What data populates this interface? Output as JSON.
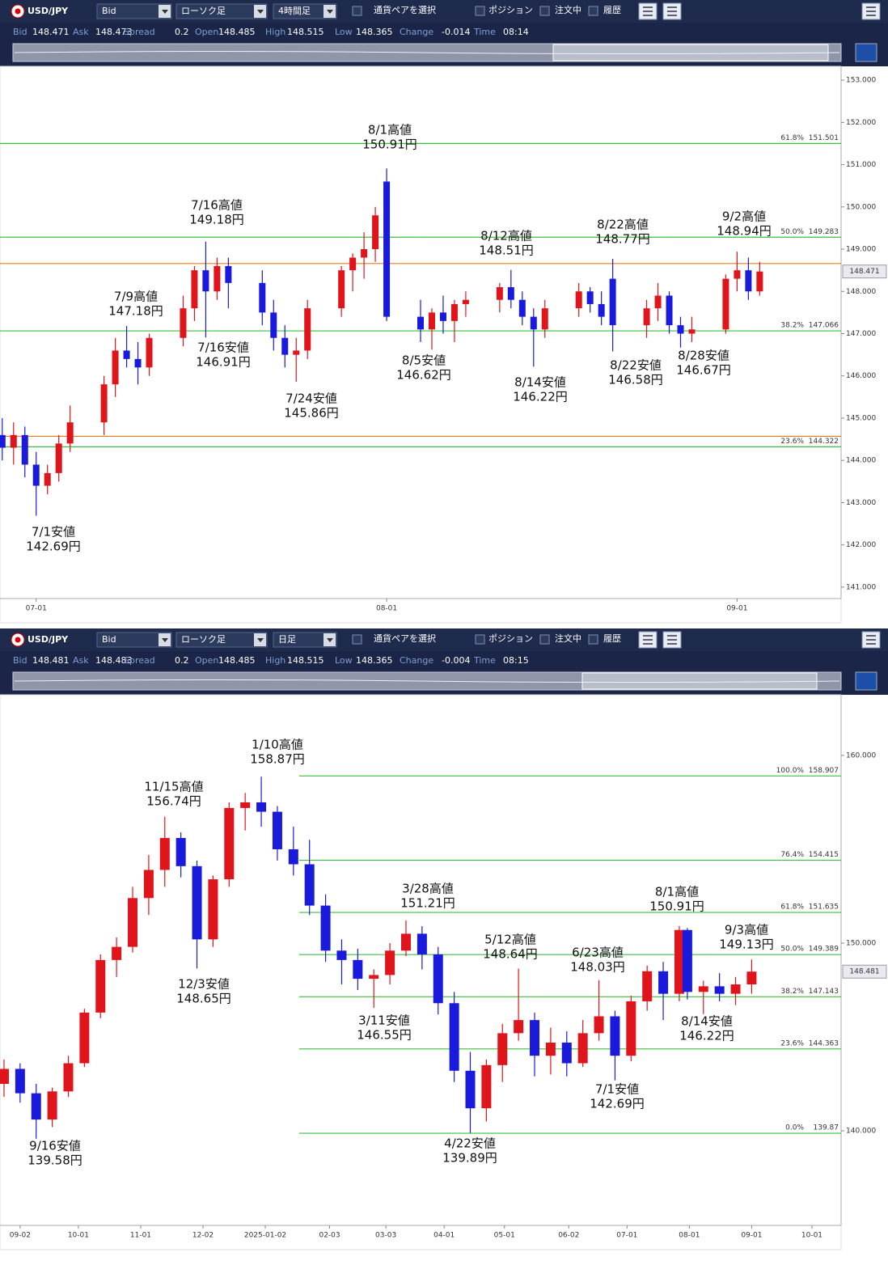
{
  "panels": [
    {
      "toolbar": {
        "pair": "USD/JPY",
        "side": "Bid",
        "chart_kind": "ローソク足",
        "period": "4時間足",
        "select": "通貨ペアを選択",
        "position": "ポジション",
        "orders": "注文中",
        "history": "履歴"
      },
      "info": [
        {
          "label": "Bid",
          "value": 148.471
        },
        {
          "label": "Ask",
          "value": 148.473
        },
        {
          "label": "Spread",
          "value": 0.2
        },
        {
          "label": "Open",
          "value": 148.485
        },
        {
          "label": "High",
          "value": 148.515
        },
        {
          "label": "Low",
          "value": 148.365
        },
        {
          "label": "Change",
          "value": -0.014
        },
        {
          "label": "Time",
          "value": "08:14"
        }
      ]
    },
    {
      "toolbar": {
        "pair": "USD/JPY",
        "side": "Bid",
        "chart_kind": "ローソク足",
        "period": "日足",
        "select": "通貨ペアを選択",
        "position": "ポジション",
        "orders": "注文中",
        "history": "履歴"
      },
      "info": [
        {
          "label": "Bid",
          "value": 148.481
        },
        {
          "label": "Ask",
          "value": 148.483
        },
        {
          "label": "Spread",
          "value": 0.2
        },
        {
          "label": "Open",
          "value": 148.485
        },
        {
          "label": "High",
          "value": 148.515
        },
        {
          "label": "Low",
          "value": 148.365
        },
        {
          "label": "Change",
          "value": -0.004
        },
        {
          "label": "Time",
          "value": "08:15"
        }
      ]
    }
  ],
  "chart_data": [
    {
      "type": "candlestick",
      "up_color": "#e0151c",
      "down_color": "#1a1adc",
      "x": [
        -3,
        -2,
        -1,
        0,
        1,
        2,
        3,
        6,
        7,
        8,
        9,
        10,
        13,
        14,
        15,
        16,
        17,
        20,
        21,
        22,
        23,
        24,
        27,
        28,
        29,
        30,
        31,
        34,
        35,
        36,
        37,
        38,
        41,
        42,
        43,
        44,
        45,
        48,
        49,
        50,
        51,
        54,
        55,
        56,
        57,
        58,
        61,
        62,
        63,
        64
      ],
      "open": [
        144.6,
        144.3,
        144.6,
        143.9,
        143.4,
        143.7,
        144.4,
        144.9,
        145.8,
        146.6,
        146.4,
        146.2,
        146.9,
        147.6,
        148.5,
        148.0,
        148.6,
        148.2,
        147.5,
        146.9,
        146.5,
        146.6,
        147.6,
        148.5,
        148.8,
        149.0,
        150.6,
        147.4,
        147.1,
        147.5,
        147.3,
        147.7,
        147.8,
        148.1,
        147.8,
        147.4,
        147.1,
        147.6,
        148.0,
        147.7,
        148.3,
        147.2,
        147.6,
        147.9,
        147.2,
        147.0,
        147.1,
        148.3,
        148.5,
        148.0
      ],
      "high": [
        145.0,
        144.9,
        144.8,
        144.2,
        143.9,
        144.6,
        145.3,
        146.0,
        146.9,
        147.18,
        146.8,
        147.0,
        147.9,
        148.6,
        149.18,
        148.8,
        148.8,
        148.5,
        147.8,
        147.2,
        146.9,
        147.8,
        148.6,
        148.9,
        149.4,
        150.0,
        150.91,
        147.8,
        147.6,
        147.9,
        147.8,
        148.0,
        148.2,
        148.51,
        148.0,
        147.6,
        147.8,
        148.2,
        148.1,
        148.0,
        148.77,
        147.8,
        148.2,
        148.0,
        147.4,
        147.4,
        148.4,
        148.94,
        148.8,
        148.7
      ],
      "low": [
        144.0,
        143.9,
        143.6,
        142.69,
        143.2,
        143.5,
        144.2,
        144.6,
        145.5,
        146.2,
        145.8,
        146.0,
        146.7,
        147.3,
        146.91,
        147.8,
        147.6,
        147.2,
        146.6,
        146.2,
        145.86,
        146.4,
        147.4,
        148.0,
        148.3,
        148.7,
        147.3,
        146.8,
        146.62,
        147.0,
        146.8,
        147.4,
        147.5,
        147.6,
        147.2,
        146.22,
        146.9,
        147.4,
        147.5,
        147.2,
        146.58,
        146.9,
        147.3,
        147.0,
        146.67,
        146.8,
        147.0,
        148.0,
        147.8,
        147.9
      ],
      "close": [
        144.3,
        144.6,
        143.9,
        143.4,
        143.7,
        144.4,
        144.9,
        145.8,
        146.6,
        146.4,
        146.2,
        146.9,
        147.6,
        148.5,
        148.0,
        148.6,
        148.2,
        147.5,
        146.9,
        146.5,
        146.6,
        147.6,
        148.5,
        148.8,
        149.0,
        149.8,
        147.4,
        147.1,
        147.5,
        147.3,
        147.7,
        147.8,
        148.1,
        147.8,
        147.4,
        147.1,
        147.6,
        148.0,
        147.7,
        147.4,
        147.2,
        147.6,
        147.9,
        147.2,
        147.0,
        147.1,
        148.3,
        148.5,
        148.0,
        148.471
      ],
      "xlim": [
        -3.2,
        71.2
      ],
      "xticks": [
        {
          "value": 0,
          "label": "07-01"
        },
        {
          "value": 31,
          "label": "08-01"
        },
        {
          "value": 62,
          "label": "09-01"
        }
      ],
      "ylim": [
        140.73,
        153.27
      ],
      "yticks": [
        {
          "value": 141,
          "label": "141.000"
        },
        {
          "value": 142,
          "label": "142.000"
        },
        {
          "value": 143,
          "label": "143.000"
        },
        {
          "value": 144,
          "label": "144.000"
        },
        {
          "value": 145,
          "label": "145.000"
        },
        {
          "value": 146,
          "label": "146.000"
        },
        {
          "value": 147,
          "label": "147.000"
        },
        {
          "value": 148,
          "label": "148.000"
        },
        {
          "value": 149,
          "label": "149.000"
        },
        {
          "value": 150,
          "label": "150.000"
        },
        {
          "value": 151,
          "label": "151.000"
        },
        {
          "value": 152,
          "label": "152.000"
        },
        {
          "value": 153,
          "label": "153.000"
        }
      ],
      "current_price": 148.471,
      "price_lines": [
        148.66,
        144.57
      ],
      "price_line_color": "#f07a1a",
      "fib_color": "#3cbf3c",
      "fib": [
        {
          "pct": {
            "value": 61.8,
            "label": "61.8%"
          },
          "level": 151.501
        },
        {
          "pct": {
            "value": 50.0,
            "label": "50.0%"
          },
          "level": 149.283
        },
        {
          "pct": {
            "value": 38.2,
            "label": "38.2%"
          },
          "level": 147.066
        },
        {
          "pct": {
            "value": 23.6,
            "label": "23.6%"
          },
          "level": 144.322
        }
      ],
      "annotations": [
        {
          "text": "7/1安値",
          "price": "142.69円"
        },
        {
          "text": "7/9高値",
          "price": "147.18円"
        },
        {
          "text": "7/16高値",
          "price": "149.18円"
        },
        {
          "text": "7/16安値",
          "price": "146.91円"
        },
        {
          "text": "7/24安値",
          "price": "145.86円"
        },
        {
          "text": "8/1高値",
          "price": "150.91円"
        },
        {
          "text": "8/5安値",
          "price": "146.62円"
        },
        {
          "text": "8/12高値",
          "price": "148.51円"
        },
        {
          "text": "8/14安値",
          "price": "146.22円"
        },
        {
          "text": "8/22高値",
          "price": "148.77円"
        },
        {
          "text": "8/22安値",
          "price": "146.58円"
        },
        {
          "text": "8/28安値",
          "price": "146.67円"
        },
        {
          "text": "9/2高値",
          "price": "148.94円"
        }
      ]
    },
    {
      "type": "candlestick",
      "up_color": "#e0151c",
      "down_color": "#1a1adc",
      "x": [
        -8,
        0,
        8,
        16,
        24,
        32,
        40,
        48,
        56,
        64,
        72,
        80,
        88,
        96,
        104,
        112,
        120,
        128,
        136,
        144,
        152,
        160,
        168,
        176,
        184,
        192,
        200,
        208,
        216,
        224,
        232,
        240,
        248,
        256,
        264,
        272,
        280,
        288,
        296,
        304,
        312,
        320,
        328,
        332,
        340,
        348,
        356,
        364
      ],
      "open": [
        142.5,
        143.3,
        142.0,
        140.6,
        142.1,
        143.6,
        146.3,
        149.1,
        149.8,
        152.4,
        153.9,
        155.6,
        154.1,
        150.2,
        153.4,
        157.2,
        157.5,
        157.0,
        155.0,
        154.2,
        152.0,
        149.6,
        149.1,
        148.1,
        148.3,
        149.6,
        150.5,
        149.4,
        146.8,
        143.2,
        141.2,
        143.5,
        145.2,
        145.9,
        144.0,
        144.7,
        143.6,
        145.2,
        146.1,
        144.0,
        146.9,
        148.5,
        147.3,
        150.7,
        147.4,
        147.7,
        147.3,
        147.8
      ],
      "high": [
        143.8,
        143.6,
        142.5,
        142.3,
        144.0,
        146.5,
        149.4,
        150.3,
        153.0,
        154.7,
        156.74,
        155.9,
        154.4,
        153.6,
        157.5,
        158.0,
        158.87,
        157.3,
        156.2,
        155.5,
        152.6,
        150.2,
        149.7,
        148.6,
        150.0,
        151.21,
        150.9,
        149.8,
        147.4,
        144.2,
        143.8,
        145.7,
        148.64,
        146.3,
        145.5,
        145.3,
        145.9,
        148.03,
        146.4,
        147.2,
        148.8,
        149.0,
        150.91,
        150.8,
        148.0,
        148.4,
        148.2,
        149.13
      ],
      "low": [
        141.8,
        141.5,
        139.58,
        140.2,
        141.8,
        143.4,
        146.0,
        148.2,
        149.5,
        151.5,
        153.0,
        153.5,
        148.65,
        149.8,
        153.0,
        156.0,
        156.2,
        154.4,
        153.6,
        151.5,
        149.0,
        147.8,
        147.5,
        146.55,
        147.8,
        149.3,
        148.6,
        146.2,
        142.6,
        139.89,
        140.5,
        142.6,
        144.8,
        142.9,
        143.0,
        142.9,
        143.4,
        144.8,
        142.69,
        143.7,
        146.4,
        145.9,
        146.9,
        147.0,
        146.22,
        146.9,
        146.7,
        147.3
      ],
      "close": [
        143.3,
        142.0,
        140.6,
        142.1,
        143.6,
        146.3,
        149.1,
        149.8,
        152.4,
        153.9,
        155.6,
        154.1,
        150.2,
        153.4,
        157.2,
        157.5,
        157.0,
        155.0,
        154.2,
        152.0,
        149.6,
        149.1,
        148.1,
        148.3,
        149.6,
        150.5,
        149.4,
        146.8,
        143.2,
        141.2,
        143.5,
        145.2,
        145.9,
        144.0,
        144.7,
        143.6,
        145.2,
        146.1,
        144.0,
        146.9,
        148.5,
        147.3,
        150.7,
        147.4,
        147.7,
        147.3,
        147.8,
        148.481
      ],
      "xlim": [
        -10,
        408.5
      ],
      "xticks": [
        {
          "value": 0,
          "label": "09-02"
        },
        {
          "value": 29,
          "label": "10-01"
        },
        {
          "value": 60,
          "label": "11-01"
        },
        {
          "value": 91,
          "label": "12-02"
        },
        {
          "value": 122,
          "label": "2025-01-02"
        },
        {
          "value": 154,
          "label": "02-03"
        },
        {
          "value": 182,
          "label": "03-03"
        },
        {
          "value": 211,
          "label": "04-01"
        },
        {
          "value": 241,
          "label": "05-01"
        },
        {
          "value": 273,
          "label": "06-02"
        },
        {
          "value": 302,
          "label": "07-01"
        },
        {
          "value": 333,
          "label": "08-01"
        },
        {
          "value": 364,
          "label": "09-01"
        },
        {
          "value": 394,
          "label": "10-01"
        }
      ],
      "ylim": [
        134.96,
        163.1
      ],
      "yticks": [
        {
          "value": 140,
          "label": "140.000"
        },
        {
          "value": 150,
          "label": "150.000"
        },
        {
          "value": 160,
          "label": "160.000"
        }
      ],
      "current_price": 148.481,
      "price_lines": [],
      "price_line_color": "#f07a1a",
      "fib_color": "#3cbf3c",
      "fib": [
        {
          "pct": {
            "value": 100.0,
            "label": "100.0%"
          },
          "level": 158.907
        },
        {
          "pct": {
            "value": 76.4,
            "label": "76.4%"
          },
          "level": 154.415
        },
        {
          "pct": {
            "value": 61.8,
            "label": "61.8%"
          },
          "level": 151.635
        },
        {
          "pct": {
            "value": 50.0,
            "label": "50.0%"
          },
          "level": 149.389
        },
        {
          "pct": {
            "value": 38.2,
            "label": "38.2%"
          },
          "level": 147.143
        },
        {
          "pct": {
            "value": 23.6,
            "label": "23.6%"
          },
          "level": 144.363
        },
        {
          "pct": {
            "value": 0.0,
            "label": "0.0%"
          },
          "level": 139.87
        }
      ],
      "annotations": [
        {
          "text": "1/10高値",
          "price": "158.87円"
        },
        {
          "text": "11/15高値",
          "price": "156.74円"
        },
        {
          "text": "12/3安値",
          "price": "148.65円"
        },
        {
          "text": "3/28高値",
          "price": "151.21円"
        },
        {
          "text": "3/11安値",
          "price": "146.55円"
        },
        {
          "text": "5/12高値",
          "price": "148.64円"
        },
        {
          "text": "6/23高値",
          "price": "148.03円"
        },
        {
          "text": "8/1高値",
          "price": "150.91円"
        },
        {
          "text": "9/3高値",
          "price": "149.13円"
        },
        {
          "text": "8/14安値",
          "price": "146.22円"
        },
        {
          "text": "7/1安値",
          "price": "142.69円"
        },
        {
          "text": "9/16安値",
          "price": "139.58円"
        },
        {
          "text": "4/22安値",
          "price": "139.89円"
        }
      ]
    }
  ]
}
